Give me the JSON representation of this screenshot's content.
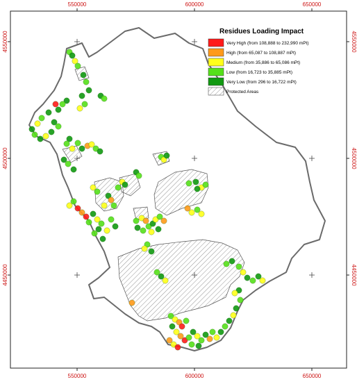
{
  "map": {
    "x_ticks": [
      "550000",
      "600000",
      "650000"
    ],
    "y_ticks": [
      "4550000",
      "4500000",
      "4450000"
    ],
    "legend": {
      "title": "Residues Loading Impact",
      "items": [
        {
          "label": "Very High (from 108,888 to 232,990 mPt)",
          "color": "#ff1a1a"
        },
        {
          "label": "High (from 65,087 to 108,887 mPt)",
          "color": "#ff9a1a"
        },
        {
          "label": "Medium (from 35,886 to 65,086 mPt)",
          "color": "#ffff1a"
        },
        {
          "label": "Low (from 16,723 to 35,885 mPt)",
          "color": "#55e01a"
        },
        {
          "label": "Very Low (from 296 to 16,722 mPt)",
          "color": "#119911"
        }
      ],
      "protected_label": "Protected Areas"
    },
    "colors": {
      "region_outline": "#666666",
      "tick_label": "#cc1111",
      "hatch": "#777777"
    }
  }
}
